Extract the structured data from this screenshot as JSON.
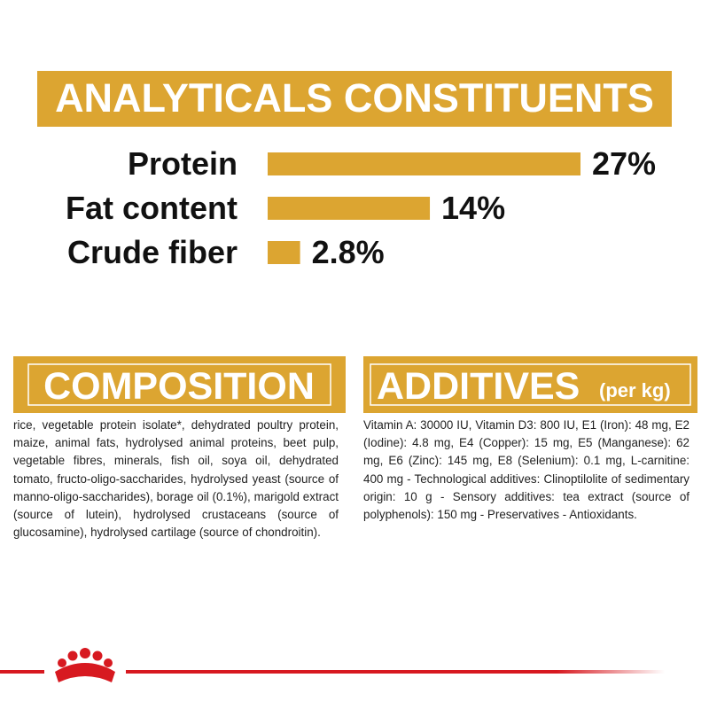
{
  "chart_data": {
    "type": "bar",
    "title": "ANALYTICALS CONSTITUENTS",
    "categories": [
      "Protein",
      "Fat content",
      "Crude fiber"
    ],
    "values": [
      27,
      14,
      2.8
    ],
    "value_labels": [
      "27%",
      "14%",
      "2.8%"
    ],
    "color": "#dca531"
  },
  "composition": {
    "title": "COMPOSITION",
    "text": "rice, vegetable protein isolate*, dehydrated poultry protein, maize, animal fats, hydrolysed animal proteins, beet pulp, vegetable fibres, minerals, fish oil, soya oil, dehydrated tomato, fructo-oligo-saccharides, hydrolysed yeast (source of manno-oligo-saccharides), borage oil (0.1%), marigold extract (source of lutein), hydrolysed crustaceans (source of glucosamine), hydrolysed cartilage (source of chondroitin)."
  },
  "additives": {
    "title": "ADDITIVES",
    "subtitle": "(per kg)",
    "text": "Vitamin A: 30000 IU, Vitamin D3: 800 IU, E1 (Iron): 48 mg, E2 (Iodine): 4.8 mg, E4 (Copper): 15 mg, E5 (Manganese): 62 mg, E6 (Zinc): 145 mg, E8 (Selenium): 0.1 mg, L-carnitine: 400 mg - Technological additives: Clinoptilolite of sedimentary origin: 10 g - Sensory additives: tea extract (source of polyphenols): 150 mg - Preservatives - Antioxidants."
  }
}
